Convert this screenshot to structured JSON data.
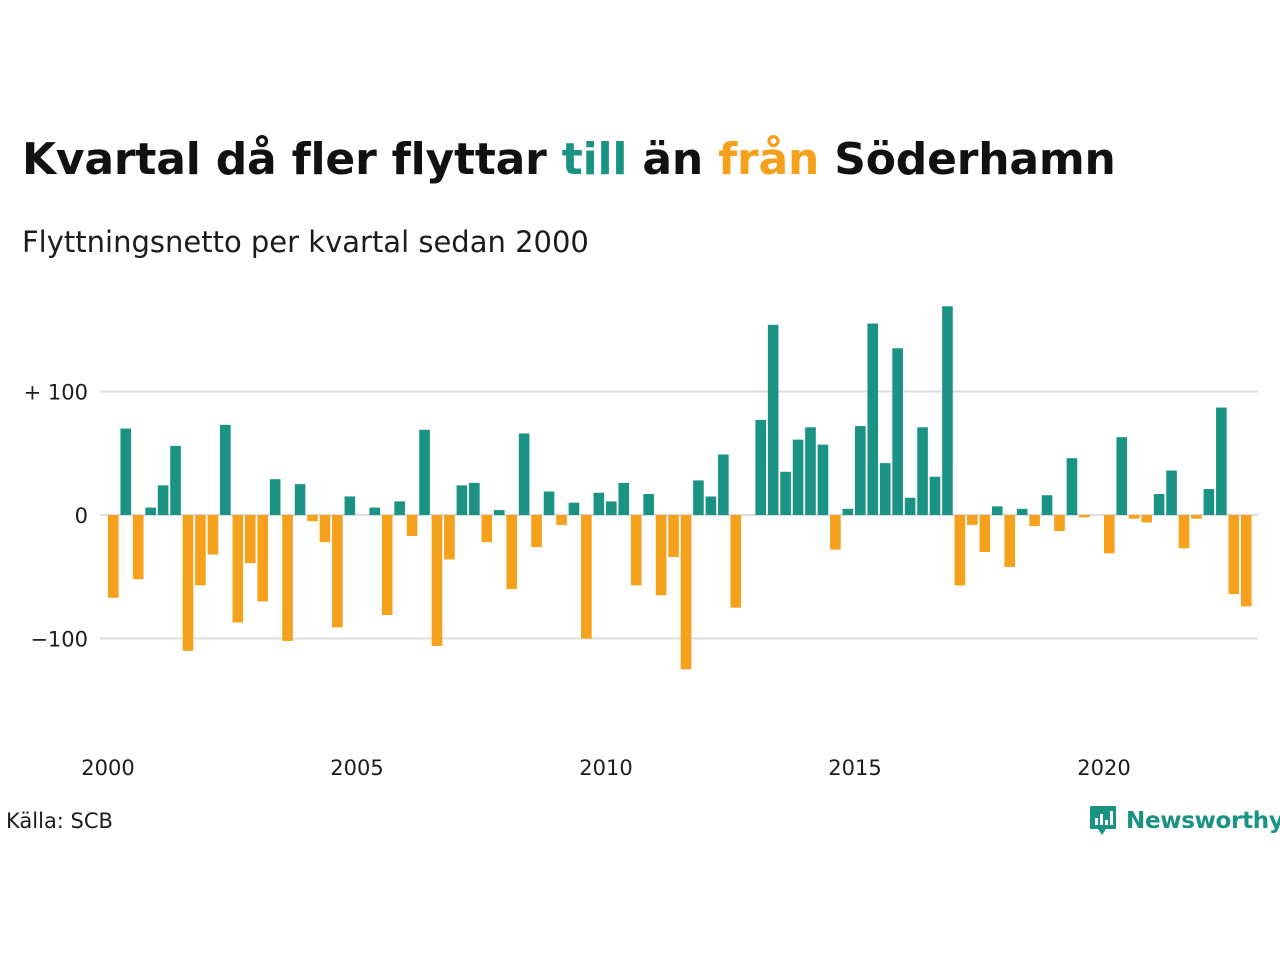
{
  "header": {
    "title_parts": [
      "Kvartal då fler flyttar ",
      "till",
      " än ",
      "från",
      " Söderhamn"
    ],
    "subtitle": "Flyttningsnetto per kvartal sedan 2000"
  },
  "footer": {
    "source": "Källa: SCB",
    "brand": "Newsworthy"
  },
  "colors": {
    "positive": "#1a9384",
    "negative": "#f5a11c",
    "grid": "#dddddd",
    "text": "#1c1c1c"
  },
  "chart_data": {
    "type": "bar",
    "title": "Kvartal då fler flyttar till än från Söderhamn",
    "subtitle": "Flyttningsnetto per kvartal sedan 2000",
    "x_start_year": 2000,
    "periods_per_year": 4,
    "values": [
      -67,
      70,
      -52,
      6,
      24,
      56,
      -110,
      -57,
      -32,
      73,
      -87,
      -39,
      -70,
      29,
      -102,
      25,
      -5,
      -22,
      -91,
      15,
      0,
      6,
      -81,
      11,
      -17,
      69,
      -106,
      -36,
      24,
      26,
      -22,
      4,
      -60,
      66,
      -26,
      19,
      -8,
      10,
      -100,
      18,
      11,
      26,
      -57,
      17,
      -65,
      -34,
      -125,
      28,
      15,
      49,
      -75,
      0,
      77,
      154,
      35,
      61,
      71,
      57,
      -28,
      5,
      72,
      155,
      42,
      135,
      14,
      71,
      31,
      169,
      -57,
      -8,
      -30,
      7,
      -42,
      5,
      -9,
      16,
      -13,
      46,
      -2,
      0,
      -31,
      63,
      -3,
      -6,
      17,
      36,
      -27,
      -3,
      21,
      87,
      -64,
      -74
    ],
    "y_ticks": [
      {
        "value": 100,
        "label": "+ 100"
      },
      {
        "value": 0,
        "label": "0"
      },
      {
        "value": -100,
        "label": "−100"
      }
    ],
    "x_ticks": [
      {
        "year": 2000,
        "label": "2000"
      },
      {
        "year": 2005,
        "label": "2005"
      },
      {
        "year": 2010,
        "label": "2010"
      },
      {
        "year": 2015,
        "label": "2015"
      },
      {
        "year": 2020,
        "label": "2020"
      }
    ],
    "ylim": [
      -175,
      175
    ],
    "grid": true,
    "legend": "in title"
  }
}
